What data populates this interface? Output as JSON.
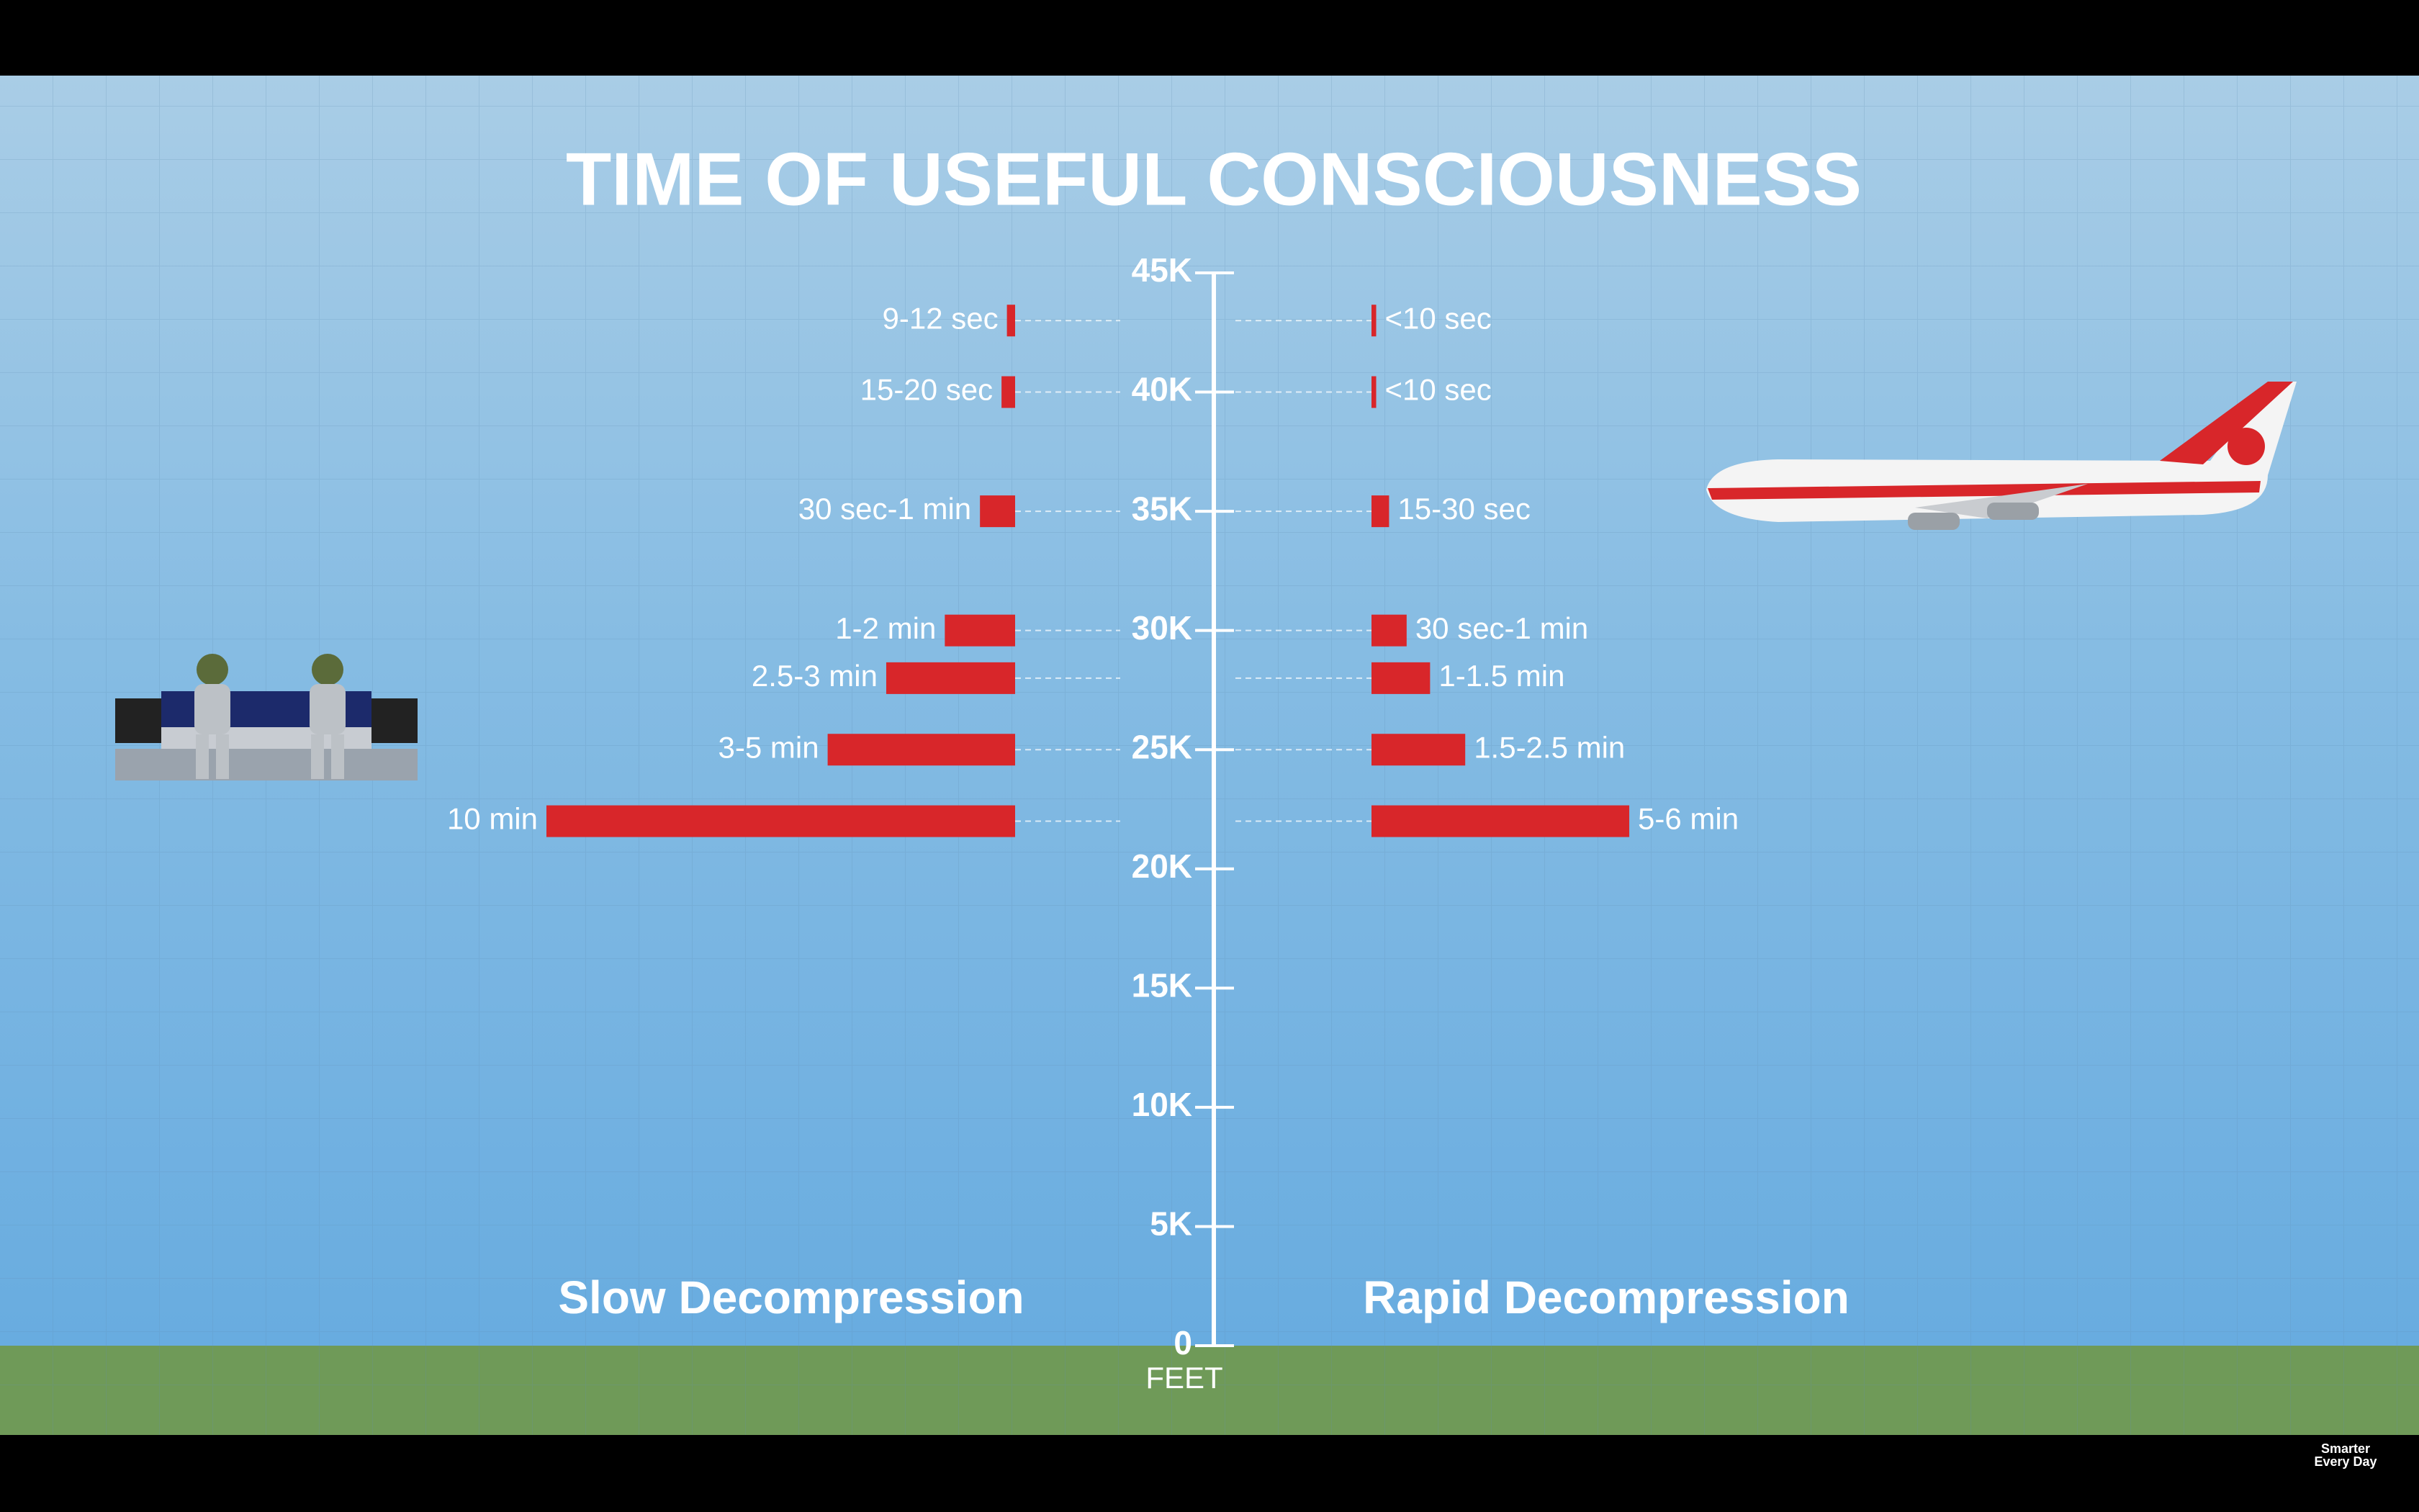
{
  "chart_data": {
    "type": "bar",
    "title": "TIME OF USEFUL CONSCIOUSNESS",
    "ylabel": "FEET",
    "y": [
      43000,
      40000,
      35000,
      30000,
      28000,
      25000,
      22000
    ],
    "ylim": [
      0,
      45000
    ],
    "yticks": [
      {
        "value": 45000,
        "label": "45K"
      },
      {
        "value": 40000,
        "label": "40K"
      },
      {
        "value": 35000,
        "label": "35K"
      },
      {
        "value": 30000,
        "label": "30K"
      },
      {
        "value": 25000,
        "label": "25K"
      },
      {
        "value": 20000,
        "label": "20K"
      },
      {
        "value": 15000,
        "label": "15K"
      },
      {
        "value": 10000,
        "label": "10K"
      },
      {
        "value": 5000,
        "label": "5K"
      },
      0
    ],
    "xlim": [
      0,
      10
    ],
    "series": [
      {
        "name": "Slow Decompression",
        "color": "#d8262a",
        "values": [
          0.175,
          0.29,
          0.75,
          1.5,
          2.75,
          4,
          10
        ],
        "value_labels": [
          "9-12 sec",
          "15-20 sec",
          "30 sec-1 min",
          "1-2 min",
          "2.5-3 min",
          "3-5 min",
          "10 min"
        ]
      },
      {
        "name": "Rapid Decompression",
        "color": "#d8262a",
        "values": [
          0.1,
          0.1,
          0.375,
          0.75,
          1.25,
          2,
          5.5
        ],
        "value_labels": [
          "<10 sec",
          "<10 sec",
          "15-30 sec",
          "30 sec-1 min",
          "1-1.5 min",
          "1.5-2.5 min",
          "5-6 min"
        ]
      }
    ],
    "watermark": [
      "Smarter",
      "Every Day"
    ]
  }
}
